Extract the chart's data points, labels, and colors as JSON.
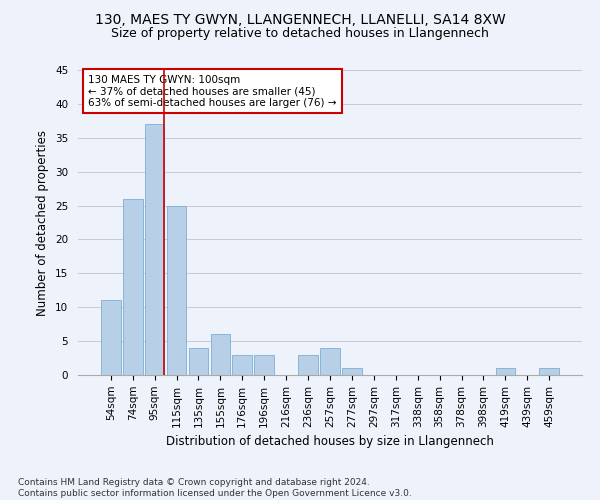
{
  "title": "130, MAES TY GWYN, LLANGENNECH, LLANELLI, SA14 8XW",
  "subtitle": "Size of property relative to detached houses in Llangennech",
  "xlabel": "Distribution of detached houses by size in Llangennech",
  "ylabel": "Number of detached properties",
  "categories": [
    "54sqm",
    "74sqm",
    "95sqm",
    "115sqm",
    "135sqm",
    "155sqm",
    "176sqm",
    "196sqm",
    "216sqm",
    "236sqm",
    "257sqm",
    "277sqm",
    "297sqm",
    "317sqm",
    "338sqm",
    "358sqm",
    "378sqm",
    "398sqm",
    "419sqm",
    "439sqm",
    "459sqm"
  ],
  "values": [
    11,
    26,
    37,
    25,
    4,
    6,
    3,
    3,
    0,
    3,
    4,
    1,
    0,
    0,
    0,
    0,
    0,
    0,
    1,
    0,
    1
  ],
  "bar_color": "#b8cfe8",
  "bar_edge_color": "#7aafd4",
  "background_color": "#eef2fa",
  "grid_color": "#c8c8d8",
  "vline_index": 2,
  "vline_color": "#cc0000",
  "annotation_text": "130 MAES TY GWYN: 100sqm\n← 37% of detached houses are smaller (45)\n63% of semi-detached houses are larger (76) →",
  "annotation_box_color": "#ffffff",
  "annotation_box_edge": "#cc0000",
  "ylim": [
    0,
    45
  ],
  "yticks": [
    0,
    5,
    10,
    15,
    20,
    25,
    30,
    35,
    40,
    45
  ],
  "footnote": "Contains HM Land Registry data © Crown copyright and database right 2024.\nContains public sector information licensed under the Open Government Licence v3.0.",
  "title_fontsize": 10,
  "subtitle_fontsize": 9,
  "axis_label_fontsize": 8.5,
  "tick_fontsize": 7.5,
  "annotation_fontsize": 7.5,
  "footnote_fontsize": 6.5
}
